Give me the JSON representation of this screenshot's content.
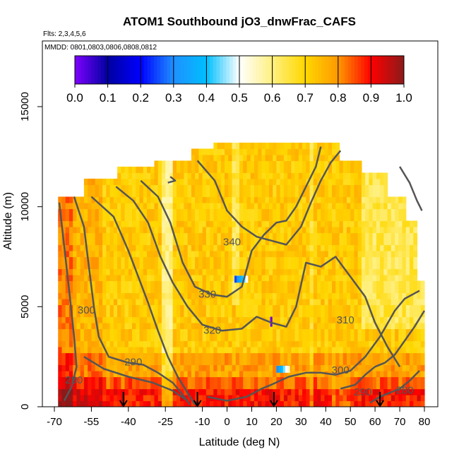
{
  "chart_data": {
    "type": "heatmap",
    "title": "ATOM1 Southbound jO3_dnwFrac_CAFS",
    "subtitle_flights": "Flts: 2,3,4,5,6",
    "subtitle_dates": "MMDD: 0801,0803,0806,0808,0812",
    "xlabel": "Latitude (deg N)",
    "ylabel": "Altitude (m)",
    "xlim": [
      -70,
      80
    ],
    "ylim": [
      0,
      17500
    ],
    "x_ticks": [
      -70,
      -55,
      -40,
      -25,
      -10,
      0,
      10,
      20,
      30,
      40,
      50,
      60,
      70,
      80
    ],
    "y_ticks": [
      0,
      5000,
      10000,
      15000
    ],
    "colorbar": {
      "min": 0.0,
      "max": 1.0,
      "ticks": [
        0.0,
        0.1,
        0.2,
        0.3,
        0.4,
        0.5,
        0.6,
        0.7,
        0.8,
        0.9,
        1.0
      ],
      "tick_labels": [
        "0.0",
        "0.1",
        "0.2",
        "0.3",
        "0.4",
        "0.5",
        "0.6",
        "0.7",
        "0.8",
        "0.9",
        "1.0"
      ],
      "colors": [
        "#7f00ff",
        "#0000a0",
        "#0000ff",
        "#1e90ff",
        "#00bfff",
        "#ffffff",
        "#fff080",
        "#ffd700",
        "#ff9900",
        "#ff0000",
        "#8b1a1a"
      ]
    },
    "contour_labels": [
      {
        "text": "280",
        "lat": -62,
        "alt": 1300
      },
      {
        "text": "290",
        "lat": -38,
        "alt": 2200
      },
      {
        "text": "300",
        "lat": -57,
        "alt": 4800
      },
      {
        "text": "320",
        "lat": -6,
        "alt": 3800
      },
      {
        "text": "330",
        "lat": -8,
        "alt": 5600
      },
      {
        "text": "340",
        "lat": 2,
        "alt": 8200
      },
      {
        "text": "310",
        "lat": 48,
        "alt": 4300
      },
      {
        "text": "300",
        "lat": 46,
        "alt": 1800
      },
      {
        "text": "290",
        "lat": 55,
        "alt": 700
      },
      {
        "text": "280",
        "lat": 72,
        "alt": 800
      }
    ],
    "arrow_latitudes": [
      -42,
      -12,
      19,
      62
    ],
    "grid": false
  }
}
